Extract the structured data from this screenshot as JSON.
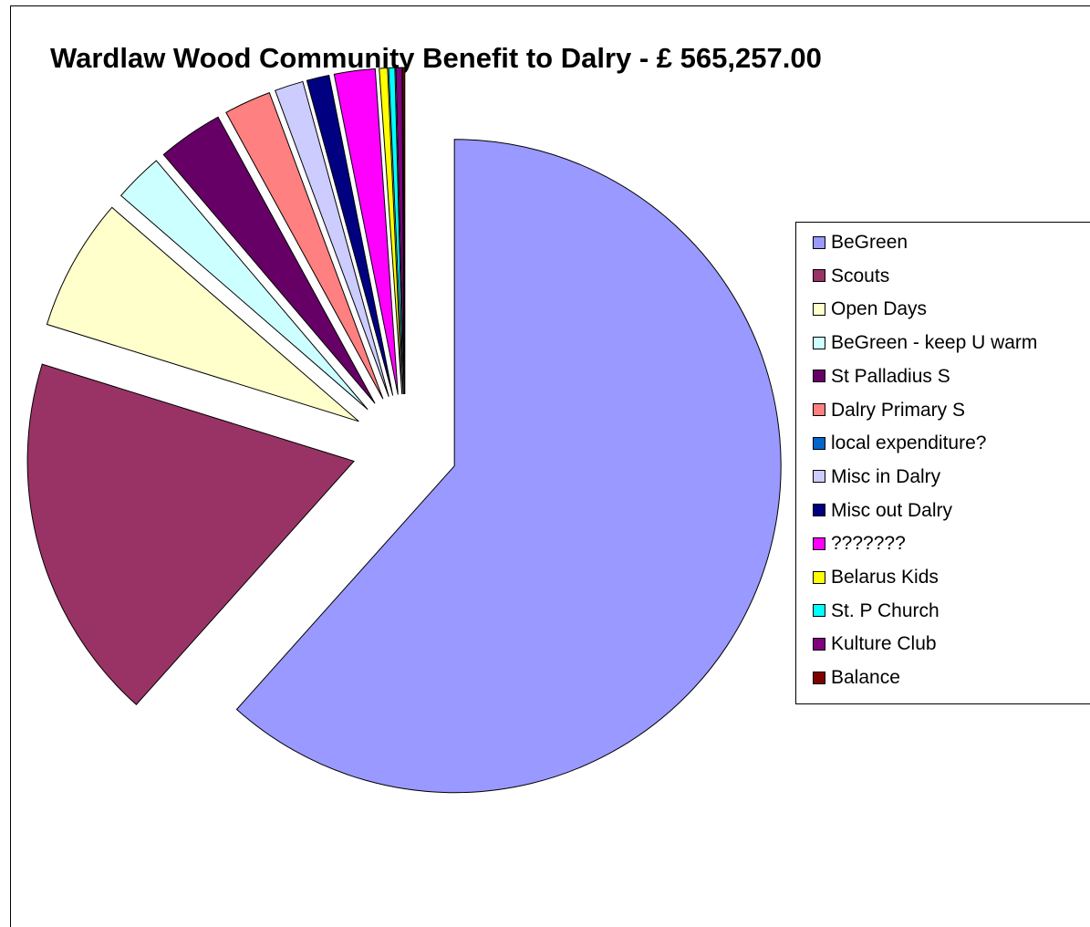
{
  "chart_data": {
    "type": "pie",
    "title": "Wardlaw Wood Community Benefit to Dalry - £ 565,257.00",
    "legend_position": "right",
    "series": [
      {
        "name": "BeGreen",
        "value": 61.0,
        "color": "#9999FF"
      },
      {
        "name": "Scouts",
        "value": 18.0,
        "color": "#993366"
      },
      {
        "name": "Open Days",
        "value": 6.5,
        "color": "#FFFFCC"
      },
      {
        "name": "BeGreen - keep U warm",
        "value": 2.4,
        "color": "#CCFFFF"
      },
      {
        "name": "St Palladius S",
        "value": 3.2,
        "color": "#660066"
      },
      {
        "name": "Dalry Primary S",
        "value": 2.3,
        "color": "#FF8080"
      },
      {
        "name": "local expenditure?",
        "value": 0.0,
        "color": "#0066CC"
      },
      {
        "name": "Misc in Dalry",
        "value": 1.4,
        "color": "#CCCCFF"
      },
      {
        "name": "Misc out Dalry",
        "value": 1.1,
        "color": "#000080"
      },
      {
        "name": "???????",
        "value": 2.0,
        "color": "#FF00FF"
      },
      {
        "name": "Belarus Kids",
        "value": 0.4,
        "color": "#FFFF00"
      },
      {
        "name": "St. P Church",
        "value": 0.3,
        "color": "#00FFFF"
      },
      {
        "name": "Kulture Club",
        "value": 0.3,
        "color": "#800080"
      },
      {
        "name": "Balance",
        "value": 0.1,
        "color": "#800000"
      }
    ]
  }
}
